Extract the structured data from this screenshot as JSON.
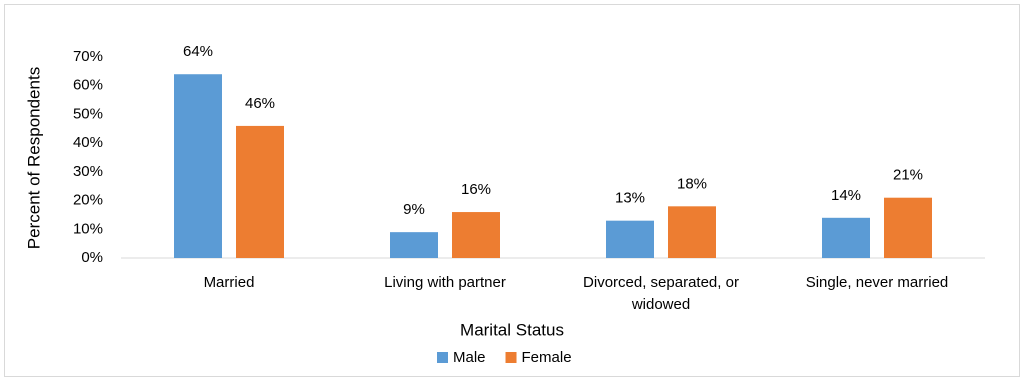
{
  "chart_data": {
    "type": "bar",
    "x_label": "Marital Status",
    "y_label": "Percent of Respondents",
    "categories": [
      "Married",
      "Living with partner",
      "Divorced, separated, or widowed",
      "Single, never married"
    ],
    "series": [
      {
        "name": "Male",
        "color": "#5b9bd5",
        "values": [
          64,
          9,
          13,
          14
        ],
        "value_labels": [
          "64%",
          "9%",
          "13%",
          "14%"
        ]
      },
      {
        "name": "Female",
        "color": "#ed7d31",
        "values": [
          46,
          16,
          18,
          21
        ],
        "value_labels": [
          "46%",
          "16%",
          "18%",
          "21%"
        ]
      }
    ],
    "ylim": [
      0,
      70
    ],
    "yticks": [
      {
        "value": 0,
        "label": "0%"
      },
      {
        "value": 10,
        "label": "10%"
      },
      {
        "value": 20,
        "label": "20%"
      },
      {
        "value": 30,
        "label": "30%"
      },
      {
        "value": 40,
        "label": "40%"
      },
      {
        "value": 50,
        "label": "50%"
      },
      {
        "value": 60,
        "label": "60%"
      },
      {
        "value": 70,
        "label": "70%"
      }
    ],
    "grid": false,
    "legend": "bottom"
  }
}
